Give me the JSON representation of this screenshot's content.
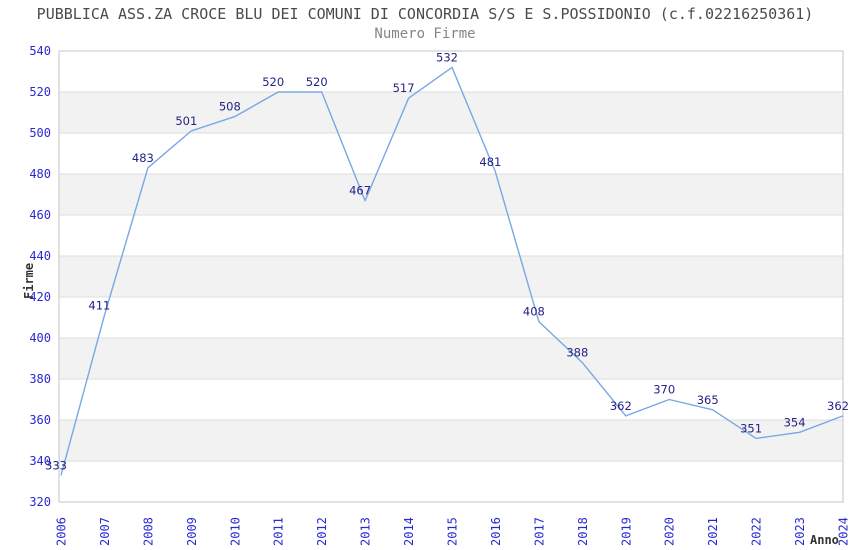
{
  "header": {
    "title": "PUBBLICA ASS.ZA CROCE BLU DEI COMUNI DI CONCORDIA S/S E S.POSSIDONIO (c.f.02216250361)",
    "subtitle": "Numero Firme"
  },
  "chart_data": {
    "type": "line",
    "title": "PUBBLICA ASS.ZA CROCE BLU DEI COMUNI DI CONCORDIA S/S E S.POSSIDONIO (c.f.02216250361)",
    "subtitle": "Numero Firme",
    "xlabel": "Anno",
    "ylabel": "Firme",
    "categories": [
      "2006",
      "2007",
      "2008",
      "2009",
      "2010",
      "2011",
      "2012",
      "2013",
      "2014",
      "2015",
      "2016",
      "2017",
      "2018",
      "2019",
      "2020",
      "2021",
      "2022",
      "2023",
      "2024"
    ],
    "values": [
      333,
      411,
      483,
      501,
      508,
      520,
      520,
      467,
      517,
      532,
      481,
      408,
      388,
      362,
      370,
      365,
      351,
      354,
      362
    ],
    "yticks": [
      320,
      340,
      360,
      380,
      400,
      420,
      440,
      460,
      480,
      500,
      520,
      540
    ],
    "ylim": [
      320,
      540
    ],
    "ytick_step": 20,
    "grid": "horizontal-bands-alternating",
    "legend": "none",
    "colors": {
      "line": "#7aa7e4",
      "band": "#f2f2f2",
      "grid_line": "#dedede",
      "plot_border": "#c6c6c6",
      "tick_label": "#2a2ad2",
      "data_label": "#232388",
      "title": "#4b4b4b",
      "subtitle": "#858585",
      "axis_title": "#333333",
      "background": "#ffffff"
    }
  }
}
